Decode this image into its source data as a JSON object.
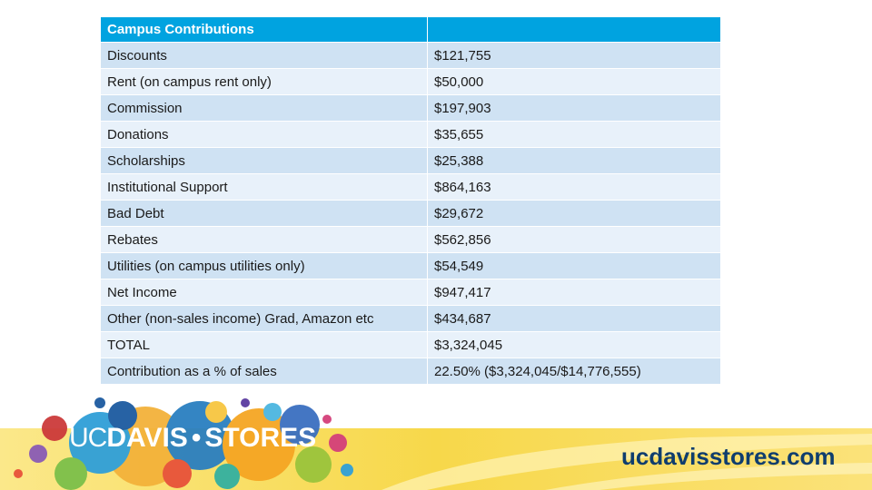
{
  "table": {
    "header": [
      "Campus Contributions",
      ""
    ],
    "rows": [
      {
        "label": "Discounts",
        "value": "$121,755"
      },
      {
        "label": "Rent (on campus rent only)",
        "value": "$50,000"
      },
      {
        "label": "Commission",
        "value": "$197,903"
      },
      {
        "label": "Donations",
        "value": "$35,655"
      },
      {
        "label": "Scholarships",
        "value": "$25,388"
      },
      {
        "label": "Institutional Support",
        "value": "$864,163"
      },
      {
        "label": "Bad Debt",
        "value": "$29,672"
      },
      {
        "label": "Rebates",
        "value": "$562,856"
      },
      {
        "label": "Utilities (on campus utilities only)",
        "value": "$54,549"
      },
      {
        "label": "Net Income",
        "value": "$947,417"
      },
      {
        "label": "Other (non-sales income) Grad, Amazon etc",
        "value": "$434,687"
      },
      {
        "label": "TOTAL",
        "value": "$3,324,045"
      },
      {
        "label": "Contribution as a % of sales",
        "value": "22.50%  ($3,324,045/$14,776,555)"
      }
    ]
  },
  "footer": {
    "logo": {
      "uc": "UC",
      "davis": "DAVIS",
      "dot": "•",
      "stores": "STORES"
    },
    "url": "ucdavisstores.com"
  },
  "colors": {
    "header_bg": "#00a3e0",
    "row_dark": "#cfe2f3",
    "row_light": "#e8f1fa",
    "url_text": "#0f3d6e",
    "banner_yellow": "#f7d84a"
  }
}
